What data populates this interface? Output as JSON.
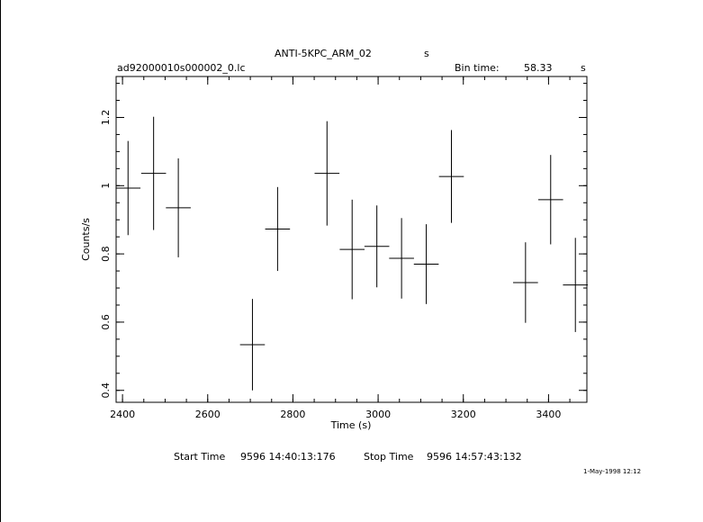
{
  "header": {
    "object_name": "ANTI-5KPC_ARM_02",
    "object_unit": "s",
    "file_name": "ad92000010s000002_0.lc",
    "bin_time_label": "Bin time:",
    "bin_time_value": "58.33",
    "bin_time_unit": "s"
  },
  "footer": {
    "start_label": "Start Time",
    "start_value": "9596  14:40:13:176",
    "stop_label": "Stop Time",
    "stop_value": "9596  14:57:43:132",
    "timestamp": "1-May-1998 12:12"
  },
  "chart_data": {
    "type": "scatter",
    "xlabel": "Time (s)",
    "ylabel": "Counts/s",
    "xlim": [
      2385,
      3490
    ],
    "ylim": [
      0.365,
      1.32
    ],
    "x_ticks": [
      2400,
      2600,
      2800,
      3000,
      3200,
      3400
    ],
    "y_ticks": [
      0.4,
      0.6,
      0.8,
      1,
      1.2
    ],
    "x_tick_labels": [
      "2400",
      "2600",
      "2800",
      "3000",
      "3200",
      "3400"
    ],
    "y_tick_labels": [
      "0.4",
      "0.6",
      "0.8",
      "1",
      "1.2"
    ],
    "x_minor_step": 50,
    "y_minor_step": 0.05,
    "bin_half_width": 29.165,
    "points": [
      {
        "x": 2413,
        "y": 0.993,
        "yerr": 0.138
      },
      {
        "x": 2473,
        "y": 1.036,
        "yerr": 0.166
      },
      {
        "x": 2531,
        "y": 0.935,
        "yerr": 0.145
      },
      {
        "x": 2705,
        "y": 0.534,
        "yerr": 0.134
      },
      {
        "x": 2764,
        "y": 0.873,
        "yerr": 0.123
      },
      {
        "x": 2880,
        "y": 1.036,
        "yerr": 0.153
      },
      {
        "x": 2939,
        "y": 0.813,
        "yerr": 0.146
      },
      {
        "x": 2997,
        "y": 0.822,
        "yerr": 0.12
      },
      {
        "x": 3055,
        "y": 0.787,
        "yerr": 0.118
      },
      {
        "x": 3113,
        "y": 0.77,
        "yerr": 0.117
      },
      {
        "x": 3172,
        "y": 1.027,
        "yerr": 0.136
      },
      {
        "x": 3346,
        "y": 0.716,
        "yerr": 0.118
      },
      {
        "x": 3405,
        "y": 0.959,
        "yerr": 0.131
      },
      {
        "x": 3463,
        "y": 0.709,
        "yerr": 0.138
      }
    ]
  }
}
